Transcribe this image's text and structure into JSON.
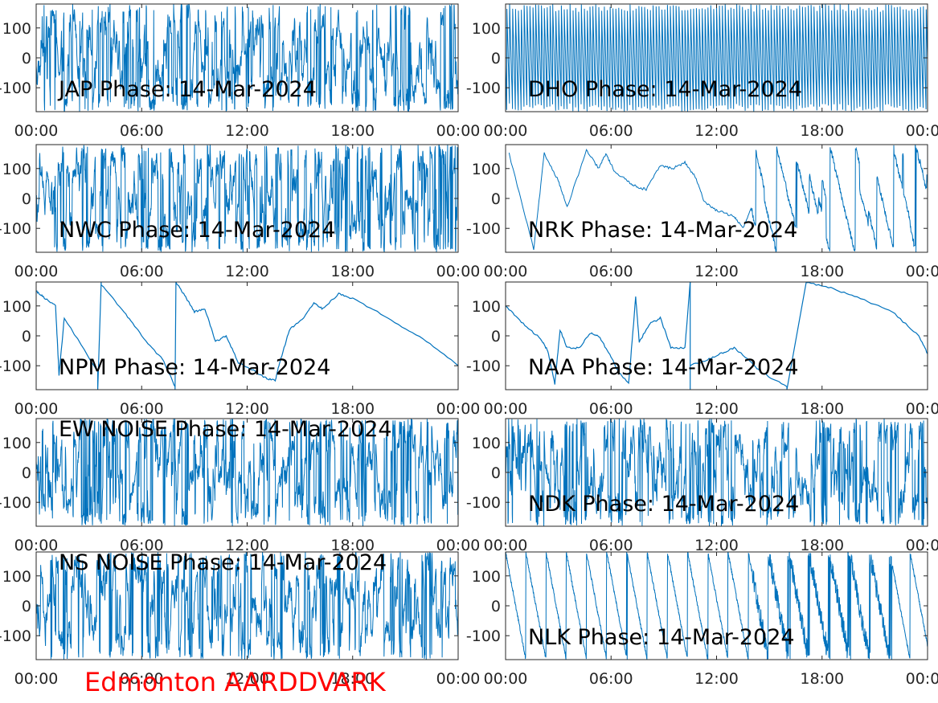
{
  "footer": {
    "text": "Edmonton AARDDVARK",
    "color": "#ff0000"
  },
  "style": {
    "line_color": "#0072bd",
    "axis_color": "#262626"
  },
  "axes_common": {
    "x_ticks": [
      "00:00",
      "06:00",
      "12:00",
      "18:00",
      "00:00"
    ],
    "y_ticks": [
      100,
      0,
      -100
    ],
    "ylim": [
      -180,
      180
    ],
    "xlim_hours": [
      0,
      24
    ]
  },
  "chart_data": [
    {
      "type": "line",
      "station": "JAP",
      "title": "JAP Phase: 14-Mar-2024",
      "pattern": "noise",
      "label_pos": "bottom",
      "x": "hours since 00:00 on 14-Mar-2024",
      "y": "phase (degrees)"
    },
    {
      "type": "line",
      "station": "DHO",
      "title": "DHO Phase: 14-Mar-2024",
      "pattern": "fast_wrap",
      "label_pos": "bottom"
    },
    {
      "type": "line",
      "station": "NWC",
      "title": "NWC Phase: 14-Mar-2024",
      "pattern": "noise",
      "label_pos": "bottom"
    },
    {
      "type": "line",
      "station": "NRK",
      "title": "NRK Phase: 14-Mar-2024",
      "pattern": "wrap_drift",
      "label_pos": "bottom",
      "approx_points": [
        [
          0.2,
          150
        ],
        [
          1.6,
          -170
        ],
        [
          2.2,
          150
        ],
        [
          3.0,
          60
        ],
        [
          3.5,
          -30
        ],
        [
          4.6,
          160
        ],
        [
          5.3,
          100
        ],
        [
          5.7,
          150
        ],
        [
          6.2,
          90
        ],
        [
          6.9,
          60
        ],
        [
          7.4,
          40
        ],
        [
          8.0,
          30
        ],
        [
          8.8,
          110
        ],
        [
          9.5,
          100
        ],
        [
          10.2,
          120
        ],
        [
          10.8,
          70
        ],
        [
          11.3,
          -10
        ],
        [
          12.0,
          -40
        ],
        [
          13.0,
          -60
        ],
        [
          13.5,
          -100
        ],
        [
          14.0,
          -30
        ]
      ]
    },
    {
      "type": "line",
      "station": "NPM",
      "title": "NPM Phase: 14-Mar-2024",
      "pattern": "smooth",
      "label_pos": "bottom",
      "segments": [
        [
          [
            0,
            150
          ],
          [
            0.4,
            130
          ],
          [
            1.1,
            100
          ],
          [
            1.3,
            -130
          ],
          [
            1.6,
            60
          ],
          [
            3.5,
            -120
          ]
        ],
        [
          [
            3.7,
            170
          ],
          [
            5.0,
            80
          ],
          [
            6.0,
            0
          ],
          [
            7.2,
            -80
          ],
          [
            7.9,
            -170
          ]
        ],
        [
          [
            7.95,
            180
          ],
          [
            8.5,
            130
          ],
          [
            9.0,
            80
          ],
          [
            9.6,
            90
          ],
          [
            10.2,
            -20
          ],
          [
            10.8,
            0
          ],
          [
            11.5,
            -90
          ],
          [
            12.2,
            -110
          ],
          [
            13.0,
            -140
          ],
          [
            13.6,
            -150
          ],
          [
            13.8,
            -100
          ],
          [
            14.4,
            20
          ],
          [
            15.2,
            60
          ],
          [
            15.8,
            110
          ],
          [
            16.3,
            90
          ],
          [
            17.2,
            140
          ],
          [
            18.0,
            125
          ],
          [
            20.0,
            60
          ],
          [
            22.0,
            -10
          ],
          [
            24.0,
            -100
          ]
        ]
      ]
    },
    {
      "type": "line",
      "station": "NAA",
      "title": "NAA Phase: 14-Mar-2024",
      "pattern": "smooth",
      "label_pos": "bottom",
      "segments": [
        [
          [
            0,
            100
          ],
          [
            1.0,
            40
          ],
          [
            2.0,
            -10
          ],
          [
            2.4,
            -50
          ],
          [
            2.8,
            -160
          ],
          [
            3.1,
            20
          ],
          [
            3.5,
            -40
          ],
          [
            4.2,
            -40
          ],
          [
            4.8,
            10
          ],
          [
            5.3,
            0
          ],
          [
            6.0,
            -70
          ],
          [
            6.4,
            -120
          ],
          [
            7.0,
            -160
          ],
          [
            7.4,
            130
          ],
          [
            7.6,
            -20
          ],
          [
            8.2,
            40
          ],
          [
            8.8,
            60
          ],
          [
            9.4,
            -40
          ],
          [
            10.2,
            -40
          ],
          [
            10.5,
            180
          ]
        ],
        [
          [
            10.5,
            -100
          ],
          [
            11.5,
            -80
          ],
          [
            12.2,
            -60
          ],
          [
            13.0,
            -40
          ],
          [
            13.8,
            -80
          ],
          [
            14.5,
            -120
          ],
          [
            16.0,
            -170
          ]
        ],
        [
          [
            17.1,
            178
          ],
          [
            18.5,
            160
          ],
          [
            20.0,
            130
          ],
          [
            22.0,
            80
          ],
          [
            23.5,
            0
          ],
          [
            24.0,
            -60
          ]
        ]
      ]
    },
    {
      "type": "line",
      "station": "EW NOISE",
      "title": "EW NOISE Phase: 14-Mar-2024",
      "pattern": "noise",
      "label_pos": "top"
    },
    {
      "type": "line",
      "station": "NDK",
      "title": "NDK Phase: 14-Mar-2024",
      "pattern": "noise",
      "label_pos": "bottom"
    },
    {
      "type": "line",
      "station": "NS NOISE",
      "title": "NS NOISE Phase: 14-Mar-2024",
      "pattern": "noise",
      "label_pos": "top"
    },
    {
      "type": "line",
      "station": "NLK",
      "title": "NLK Phase: 14-Mar-2024",
      "pattern": "sawtooth",
      "label_pos": "bottom",
      "period_hours": 1.15
    }
  ]
}
